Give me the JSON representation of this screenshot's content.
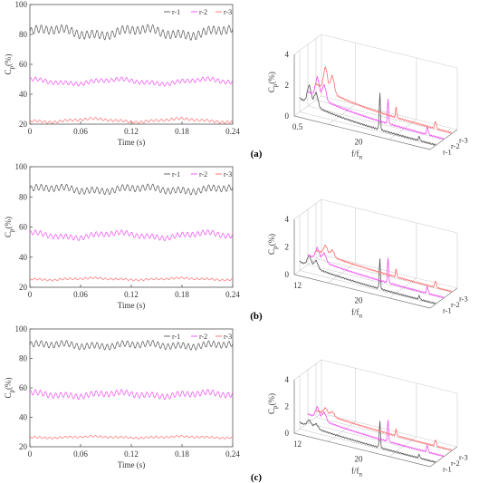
{
  "chart_data": [
    {
      "panel": "(a)",
      "type": "line",
      "xlabel": "Time (s)",
      "ylabel": "C_p(%)",
      "xlim": [
        0,
        0.24
      ],
      "ylim": [
        20,
        100
      ],
      "xticks": [
        "0",
        "0.06",
        "0.12",
        "0.18",
        "0.24"
      ],
      "yticks": [
        "20",
        "40",
        "60",
        "80",
        "100"
      ],
      "legend": "top-right",
      "series": [
        {
          "name": "r-1",
          "color": "#555555",
          "mean": 81.5,
          "amp": 2.6,
          "cycles": 40,
          "drift": 2.2
        },
        {
          "name": "r-2",
          "color": "#f24af2",
          "mean": 48.5,
          "amp": 1.3,
          "cycles": 40,
          "drift": 1.4
        },
        {
          "name": "r-3",
          "color": "#ff6b6b",
          "mean": 22.5,
          "amp": 0.8,
          "cycles": 40,
          "drift": 1.0
        }
      ]
    },
    {
      "panel": "(a)",
      "type": "line",
      "projection": "3d",
      "xlabel": "f/f_n",
      "ylabel": "C_p(%)",
      "zlim": [
        0,
        4
      ],
      "xticks": [
        "0.5",
        "20"
      ],
      "zticks": [
        "0",
        "2",
        "4"
      ],
      "depth_ticks": [
        "r-1",
        "r-2",
        "r-3"
      ],
      "series": [
        {
          "name": "r-1",
          "color": "#555555",
          "low_peak": 1.3,
          "main_peak": 2.4
        },
        {
          "name": "r-2",
          "color": "#f24af2",
          "low_peak": 1.4,
          "main_peak": 1.6
        },
        {
          "name": "r-3",
          "color": "#ff6b6b",
          "low_peak": 1.6,
          "main_peak": 0.7
        }
      ]
    },
    {
      "panel": "(b)",
      "type": "line",
      "xlabel": "Time (s)",
      "ylabel": "C_p(%)",
      "xlim": [
        0,
        0.24
      ],
      "ylim": [
        20,
        100
      ],
      "xticks": [
        "0",
        "0.06",
        "0.12",
        "0.18",
        "0.24"
      ],
      "yticks": [
        "20",
        "40",
        "60",
        "80",
        "100"
      ],
      "legend": "top-right",
      "series": [
        {
          "name": "r-1",
          "color": "#555555",
          "mean": 85,
          "amp": 2.0,
          "cycles": 40,
          "drift": 1.2
        },
        {
          "name": "r-2",
          "color": "#f24af2",
          "mean": 54.5,
          "amp": 1.6,
          "cycles": 40,
          "drift": 1.5
        },
        {
          "name": "r-3",
          "color": "#ff6b6b",
          "mean": 25.5,
          "amp": 0.6,
          "cycles": 40,
          "drift": 0.5
        }
      ]
    },
    {
      "panel": "(b)",
      "type": "line",
      "projection": "3d",
      "xlabel": "f/f_n",
      "ylabel": "C_p(%)",
      "zlim": [
        0,
        4
      ],
      "xticks": [
        "12",
        "20"
      ],
      "zticks": [
        "0",
        "2",
        "4"
      ],
      "depth_ticks": [
        "r-1",
        "r-2",
        "r-3"
      ],
      "series": [
        {
          "name": "r-1",
          "color": "#555555",
          "low_peak": 0.8,
          "main_peak": 2.2
        },
        {
          "name": "r-2",
          "color": "#f24af2",
          "low_peak": 0.9,
          "main_peak": 1.8
        },
        {
          "name": "r-3",
          "color": "#ff6b6b",
          "low_peak": 0.7,
          "main_peak": 0.6
        }
      ]
    },
    {
      "panel": "(c)",
      "type": "line",
      "xlabel": "Time (s)",
      "ylabel": "C_p(%)",
      "xlim": [
        0,
        0.24
      ],
      "ylim": [
        20,
        100
      ],
      "xticks": [
        "0",
        "0.06",
        "0.12",
        "0.18",
        "0.24"
      ],
      "yticks": [
        "20",
        "40",
        "60",
        "80",
        "100"
      ],
      "legend": "top-right",
      "series": [
        {
          "name": "r-1",
          "color": "#555555",
          "mean": 89,
          "amp": 2.0,
          "cycles": 40,
          "drift": 0.8
        },
        {
          "name": "r-2",
          "color": "#f24af2",
          "mean": 55.5,
          "amp": 1.8,
          "cycles": 40,
          "drift": 1.0
        },
        {
          "name": "r-3",
          "color": "#ff6b6b",
          "mean": 26.5,
          "amp": 0.6,
          "cycles": 40,
          "drift": 0.4
        }
      ]
    },
    {
      "panel": "(c)",
      "type": "line",
      "projection": "3d",
      "xlabel": "f/f_n",
      "ylabel": "C_p(%)",
      "zlim": [
        0,
        4
      ],
      "xticks": [
        "12",
        "20"
      ],
      "zticks": [
        "0",
        "2",
        "4"
      ],
      "depth_ticks": [
        "r-1",
        "r-2",
        "r-3"
      ],
      "series": [
        {
          "name": "r-1",
          "color": "#555555",
          "low_peak": 0.5,
          "main_peak": 2.0
        },
        {
          "name": "r-2",
          "color": "#f24af2",
          "low_peak": 0.9,
          "main_peak": 1.6
        },
        {
          "name": "r-3",
          "color": "#ff6b6b",
          "low_peak": 0.5,
          "main_peak": 0.5
        }
      ]
    }
  ],
  "panel_labels": [
    "(a)",
    "(b)",
    "(c)"
  ]
}
